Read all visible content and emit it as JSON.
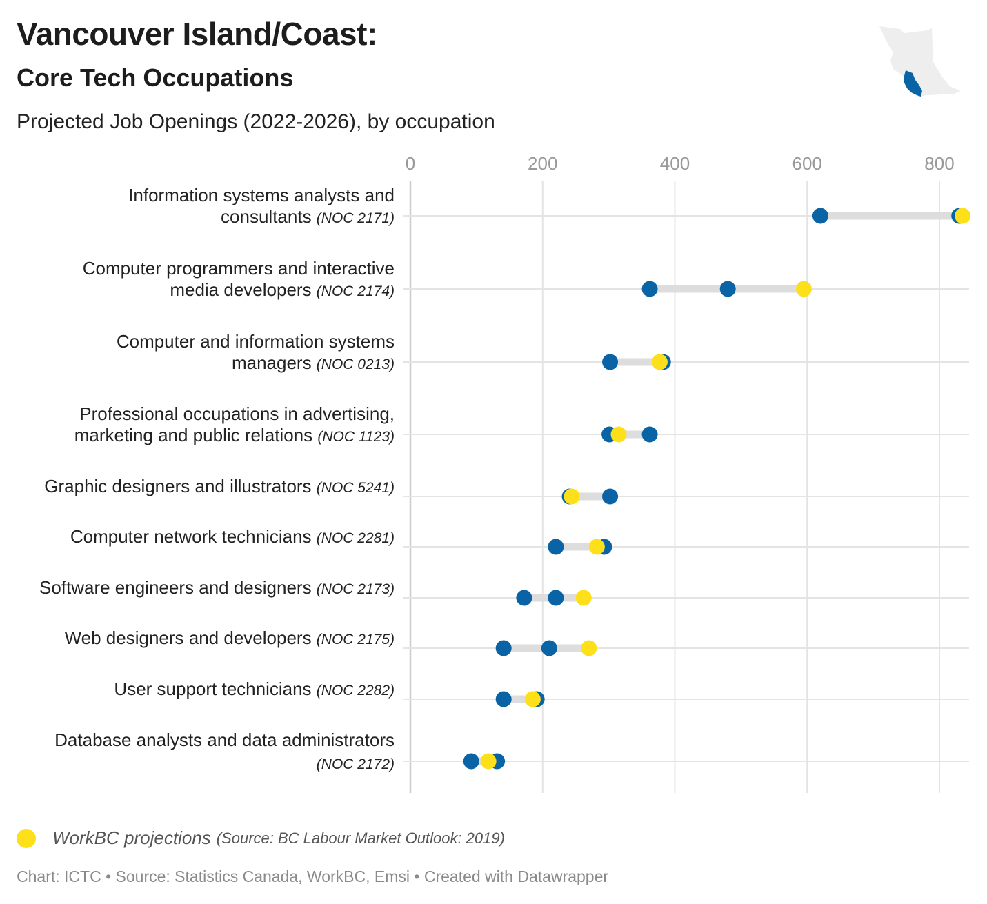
{
  "header": {
    "title": "Vancouver Island/Coast:",
    "subtitle": "Core Tech Occupations",
    "description": "Projected Job Openings (2022-2026), by occupation"
  },
  "colors": {
    "primary_dot": "#0a63a5",
    "projection_dot": "#fde01a",
    "range_bar": "#dddddd",
    "grid": "#e4e4e4",
    "axis": "#cccccc",
    "tick_text": "#999999",
    "map_land": "#eeeeee",
    "map_region": "#0a63a5"
  },
  "chart_data": {
    "type": "range-dot",
    "description": "Projected Job Openings (2022-2026), by occupation",
    "xlim": [
      0,
      830
    ],
    "x_ticks": [
      "0",
      "200",
      "400",
      "600",
      "800"
    ],
    "x_tick_values": [
      0,
      200,
      400,
      600,
      800
    ],
    "legend": {
      "label": "WorkBC projections",
      "source": "(Source: BC Labour Market Outlook: 2019)"
    },
    "rows": [
      {
        "name": "Information systems analysts and",
        "name2": "consultants",
        "noc": "(NOC 2171)",
        "blue": [
          620,
          830
        ],
        "yellow": 835
      },
      {
        "name": "Computer programmers and interactive",
        "name2": "media developers",
        "noc": "(NOC 2174)",
        "blue": [
          362,
          480
        ],
        "yellow": 595
      },
      {
        "name": "Computer and information systems",
        "name2": "managers",
        "noc": "(NOC 0213)",
        "blue": [
          302,
          382
        ],
        "yellow": 377
      },
      {
        "name": "Professional occupations in advertising,",
        "name2": "marketing and public relations",
        "noc": "(NOC 1123)",
        "blue": [
          301,
          362
        ],
        "yellow": 315
      },
      {
        "name": "Graphic designers and illustrators",
        "name2": "",
        "noc": "(NOC 5241)",
        "blue": [
          241,
          302
        ],
        "yellow": 244
      },
      {
        "name": "Computer network technicians",
        "name2": "",
        "noc": "(NOC 2281)",
        "blue": [
          220,
          293
        ],
        "yellow": 282
      },
      {
        "name": "Software engineers and designers",
        "name2": "",
        "noc": "(NOC 2173)",
        "blue": [
          172,
          220
        ],
        "yellow": 262
      },
      {
        "name": "Web designers and developers",
        "name2": "",
        "noc": "(NOC 2175)",
        "blue": [
          141,
          210
        ],
        "yellow": 270
      },
      {
        "name": "User support technicians",
        "name2": "",
        "noc": "(NOC 2282)",
        "blue": [
          141,
          191
        ],
        "yellow": 185
      },
      {
        "name": "Database analysts and data administrators",
        "name2": "",
        "noc": "(NOC 2172)",
        "noc_newline": true,
        "blue": [
          92,
          131
        ],
        "yellow": 118
      }
    ]
  },
  "footer": {
    "text": "Chart: ICTC • Source: Statistics Canada, WorkBC, Emsi • Created with Datawrapper"
  }
}
